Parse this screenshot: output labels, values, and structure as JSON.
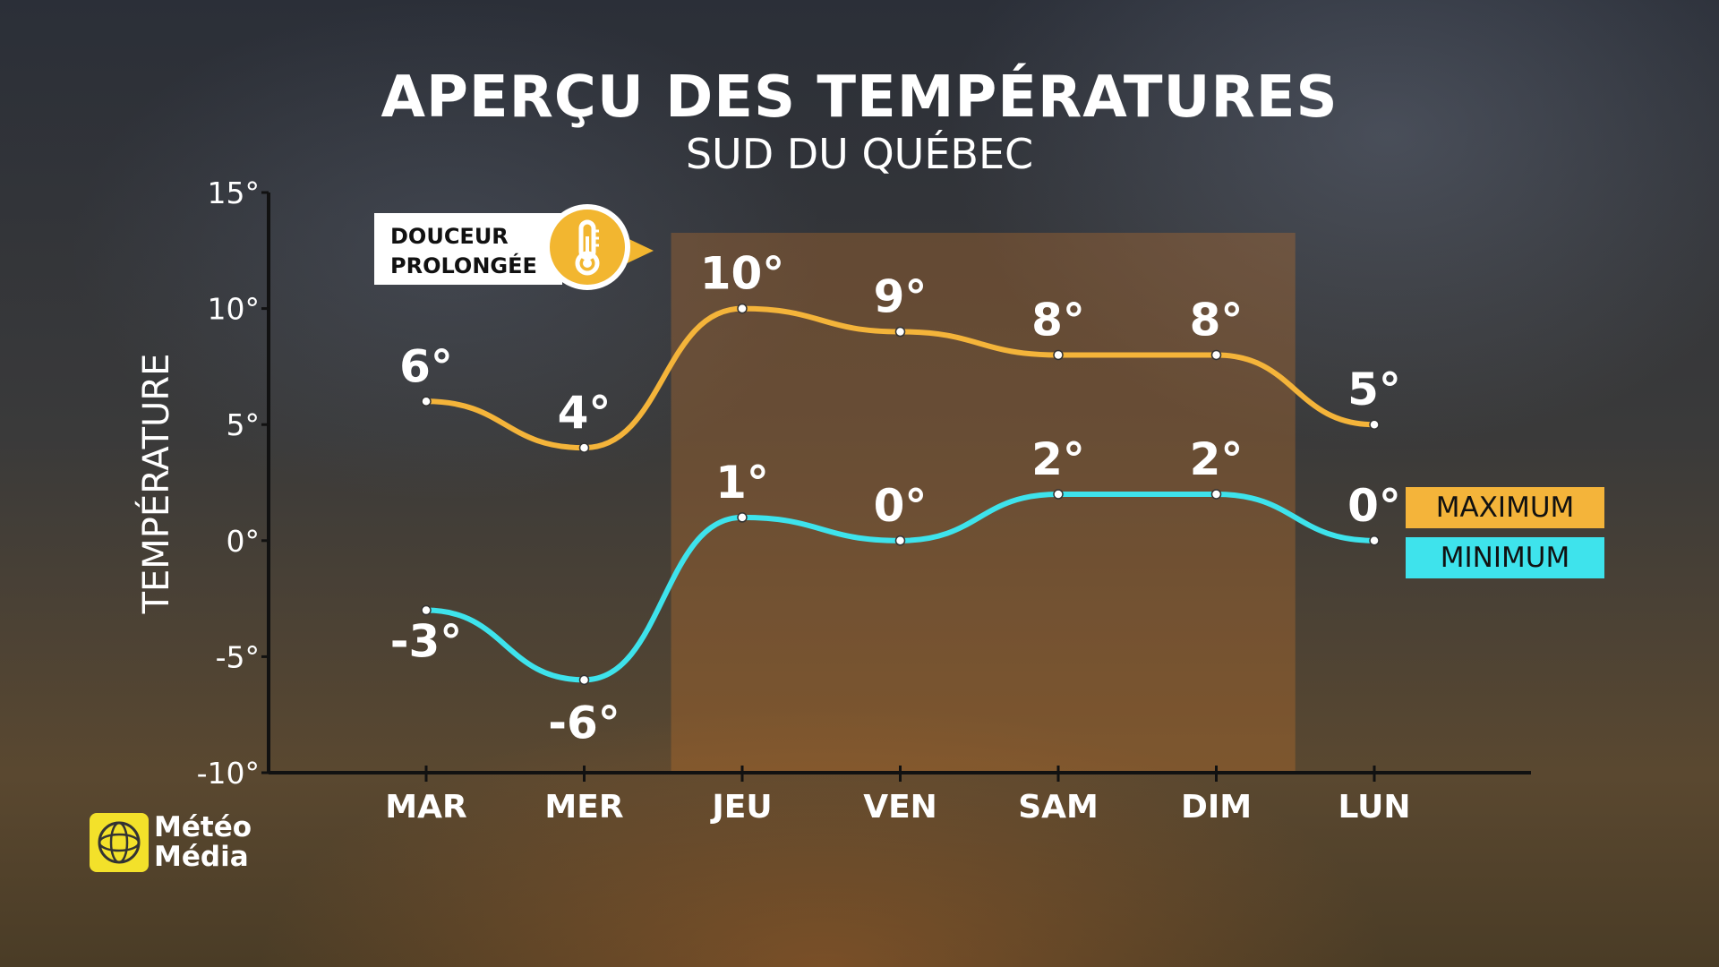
{
  "title": "APERÇU DES TEMPÉRATURES",
  "subtitle": "SUD DU QUÉBEC",
  "callout": {
    "line1": "DOUCEUR",
    "line2": "PROLONGÉE",
    "icon": "thermometer-icon"
  },
  "legend": {
    "max": "MAXIMUM",
    "min": "MINIMUM"
  },
  "logo": {
    "line1": "Météo",
    "line2": "Média"
  },
  "chart_data": {
    "type": "line",
    "title": "APERÇU DES TEMPÉRATURES",
    "subtitle": "SUD DU QUÉBEC",
    "ylabel": "TEMPÉRATURE",
    "xlabel": "",
    "ylim": [
      -10,
      15
    ],
    "yticks": [
      15,
      10,
      5,
      0,
      -5,
      -10
    ],
    "ytick_labels": [
      "15°",
      "10°",
      "5°",
      "0°",
      "-5°",
      "-10°"
    ],
    "categories": [
      "MAR",
      "MER",
      "JEU",
      "VEN",
      "SAM",
      "DIM",
      "LUN"
    ],
    "highlight_range": [
      "JEU",
      "DIM"
    ],
    "legend_position": "right",
    "grid": false,
    "series": [
      {
        "name": "MAXIMUM",
        "color": "#f4b43a",
        "values": [
          6,
          4,
          10,
          9,
          8,
          8,
          5
        ],
        "labels": [
          "6°",
          "4°",
          "10°",
          "9°",
          "8°",
          "8°",
          "5°"
        ]
      },
      {
        "name": "MINIMUM",
        "color": "#3ee3ec",
        "values": [
          -3,
          -6,
          1,
          0,
          2,
          2,
          0
        ],
        "labels": [
          "-3°",
          "-6°",
          "1°",
          "0°",
          "2°",
          "2°",
          "0°"
        ]
      }
    ]
  }
}
